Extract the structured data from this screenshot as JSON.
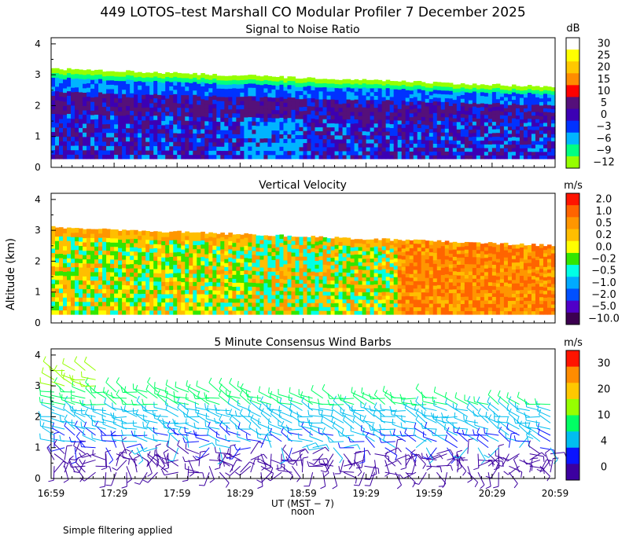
{
  "figure": {
    "title": "449 LOTOS–test Marshall CO Modular Profiler  7 December 2025",
    "footnote": "Simple filtering applied"
  },
  "chart_data": [
    {
      "type": "heatmap",
      "title": "Signal to Noise Ratio",
      "ylabel": "",
      "ylim": [
        0,
        4
      ],
      "yticks": [
        "0",
        "1",
        "2",
        "3",
        "4"
      ],
      "colorbar": {
        "unit": "dB",
        "labels": [
          "30",
          "25",
          "20",
          "15",
          "10",
          "5",
          "0",
          "−3",
          "−6",
          "−9",
          "−12"
        ],
        "colors": [
          "#ffffff",
          "#ffff00",
          "#ffc800",
          "#ff8c00",
          "#ff0000",
          "#55107a",
          "#3c00b4",
          "#0032ff",
          "#00b4ff",
          "#00ff82",
          "#96ff00"
        ]
      },
      "data_top_km_start": 3.2,
      "data_top_km_end": 2.6
    },
    {
      "type": "heatmap",
      "title": "Vertical Velocity",
      "ylabel": "Altitude (km)",
      "ylim": [
        0,
        4
      ],
      "yticks": [
        "0",
        "1",
        "2",
        "3",
        "4"
      ],
      "colorbar": {
        "unit": "m/s",
        "labels": [
          "2.0",
          "1.0",
          "0.5",
          "0.2",
          "0.0",
          "−0.2",
          "−0.5",
          "−1.0",
          "−2.0",
          "−5.0",
          "−10.0"
        ],
        "colors": [
          "#ff1400",
          "#ff6400",
          "#ff9600",
          "#ffbe00",
          "#ffff00",
          "#32e600",
          "#00ffe6",
          "#00aaff",
          "#0050ff",
          "#5000c8",
          "#3c0050"
        ]
      },
      "data_top_km_start": 3.1,
      "data_top_km_end": 2.5
    },
    {
      "type": "scatter",
      "title": "5 Minute Consensus Wind Barbs",
      "ylabel": "",
      "ylim": [
        0,
        4
      ],
      "yticks": [
        "0",
        "1",
        "2",
        "3",
        "4"
      ],
      "colorbar": {
        "unit": "m/s",
        "labels": [
          "30",
          "20",
          "10",
          "4",
          "0"
        ],
        "colors": [
          "#ff1400",
          "#ff8c00",
          "#ffc800",
          "#96ff00",
          "#00ff64",
          "#00bef0",
          "#0a14ff",
          "#3c00a0"
        ]
      },
      "x_time_start": "16:59",
      "x_time_end": "20:59",
      "x_interval_min": 5,
      "altitudes_km": [
        0.2,
        0.4,
        0.6,
        0.8,
        1.0,
        1.2,
        1.4,
        1.6,
        1.8,
        2.0,
        2.2,
        2.4,
        2.6,
        2.8,
        3.0,
        3.2,
        3.5
      ]
    }
  ],
  "xaxis": {
    "ticks": [
      "16:59",
      "17:29",
      "17:59",
      "18:29",
      "18:59",
      "19:29",
      "19:59",
      "20:29",
      "20:59"
    ],
    "label": "UT  (MST − 7)",
    "noon_label": "noon"
  }
}
